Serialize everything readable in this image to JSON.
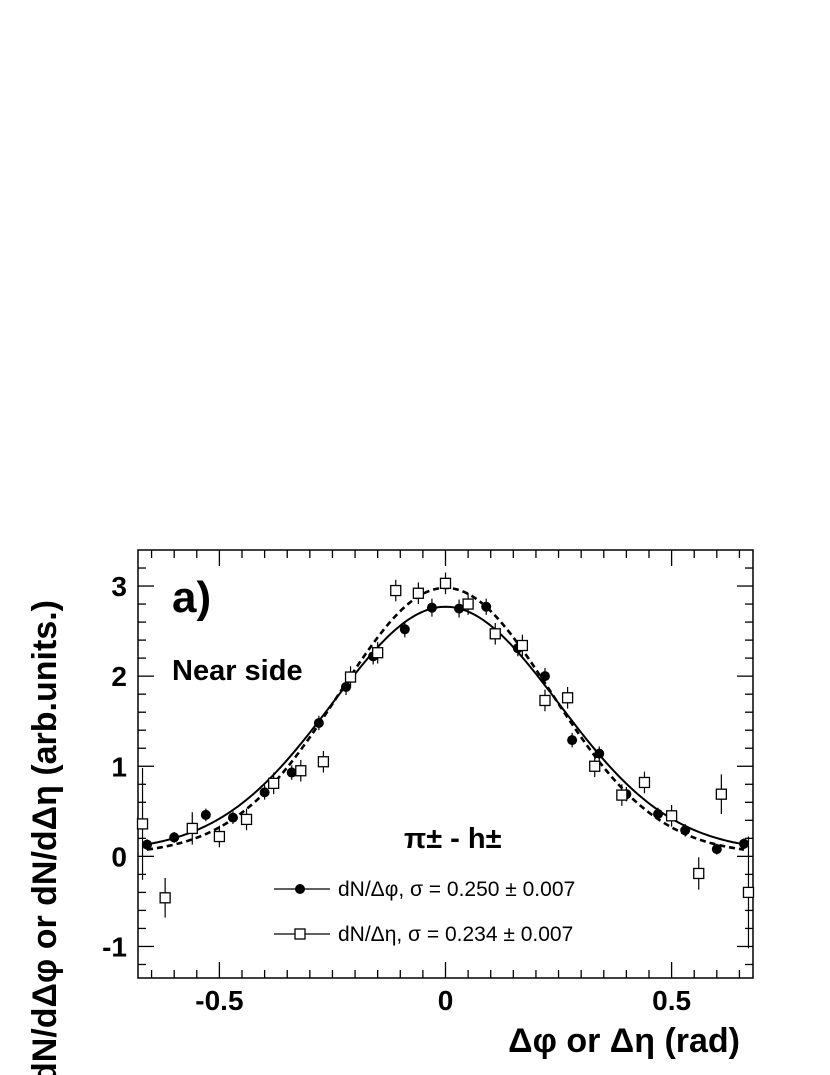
{
  "chart_data": {
    "type": "scatter",
    "panel_label": "a)",
    "annotation": "Near side",
    "pair_label": "π± - h±",
    "xlabel": "Δφ or Δη (rad)",
    "ylabel": "dN/dΔφ or dN/dΔη (arb.units.)",
    "xlim": [
      -0.68,
      0.68
    ],
    "ylim": [
      -1.35,
      3.4
    ],
    "x_ticks": [
      "-0.5",
      "0",
      "0.5"
    ],
    "y_ticks": [
      "-1",
      "0",
      "1",
      "2",
      "3"
    ],
    "grid": false,
    "legend_position": "bottom-center",
    "series": [
      {
        "name": "dN/Δφ, σ = 0.250 ± 0.007",
        "marker": "filled-circle",
        "color": "#000000",
        "x": [
          -0.66,
          -0.6,
          -0.53,
          -0.47,
          -0.4,
          -0.34,
          -0.28,
          -0.22,
          -0.16,
          -0.09,
          -0.03,
          0.03,
          0.09,
          0.16,
          0.22,
          0.28,
          0.34,
          0.4,
          0.47,
          0.53,
          0.6,
          0.66
        ],
        "y": [
          0.13,
          0.21,
          0.46,
          0.43,
          0.71,
          0.93,
          1.48,
          1.88,
          2.22,
          2.52,
          2.76,
          2.75,
          2.77,
          2.31,
          2.0,
          1.29,
          1.14,
          0.69,
          0.47,
          0.29,
          0.08,
          0.14
        ],
        "err": [
          0.06,
          0.06,
          0.07,
          0.07,
          0.08,
          0.08,
          0.08,
          0.09,
          0.09,
          0.09,
          0.1,
          0.1,
          0.09,
          0.09,
          0.09,
          0.08,
          0.08,
          0.08,
          0.07,
          0.07,
          0.06,
          0.06
        ]
      },
      {
        "name": "dN/Δη, σ = 0.234 ± 0.007",
        "marker": "open-square",
        "color": "#000000",
        "x": [
          -0.67,
          -0.62,
          -0.56,
          -0.5,
          -0.44,
          -0.38,
          -0.32,
          -0.27,
          -0.21,
          -0.15,
          -0.11,
          -0.06,
          0.0,
          0.05,
          0.11,
          0.17,
          0.22,
          0.27,
          0.33,
          0.39,
          0.44,
          0.5,
          0.56,
          0.61,
          0.67
        ],
        "y": [
          0.36,
          -0.46,
          0.31,
          0.22,
          0.41,
          0.81,
          0.95,
          1.05,
          1.99,
          2.26,
          2.95,
          2.92,
          3.03,
          2.8,
          2.47,
          2.34,
          1.73,
          1.76,
          1.0,
          0.68,
          0.82,
          0.45,
          -0.19,
          0.69,
          -0.4
        ]
      }
    ],
    "fits": [
      {
        "name": "fit-dphi",
        "style": "solid",
        "amplitude": 2.72,
        "sigma": 0.25,
        "offset": 0.05
      },
      {
        "name": "fit-deta",
        "style": "dashed",
        "amplitude": 2.96,
        "sigma": 0.234,
        "offset": 0.02
      }
    ]
  }
}
